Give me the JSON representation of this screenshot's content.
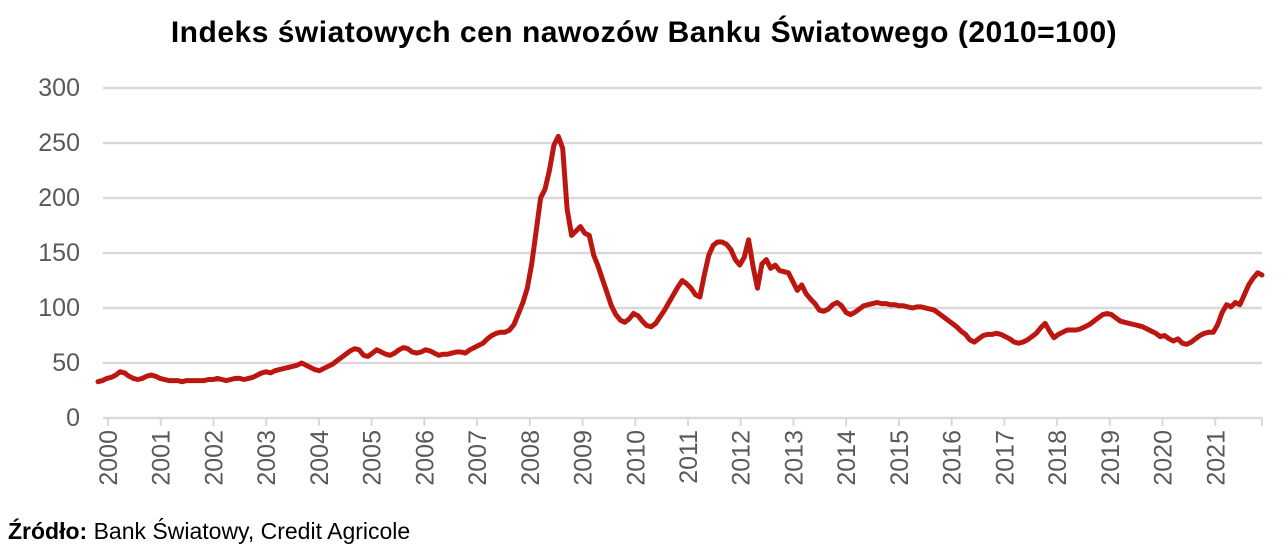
{
  "title": "Indeks światowych cen nawozów Banku Światowego (2010=100)",
  "source": {
    "label": "Źródło:",
    "text": " Bank Światowy, Credit Agricole"
  },
  "colors": {
    "line": "#BC1610",
    "grid": "#D9D9D9",
    "axis_text": "#595959",
    "title_text": "#000000"
  },
  "chart_data": {
    "type": "line",
    "title": "Indeks światowych cen nawozów Banku Światowego (2010=100)",
    "xlabel": "",
    "ylabel": "",
    "ylim": [
      0,
      300
    ],
    "y_ticks": [
      0,
      50,
      100,
      150,
      200,
      250,
      300
    ],
    "x_tick_labels": [
      "2000",
      "2001",
      "2002",
      "2003",
      "2004",
      "2005",
      "2006",
      "2007",
      "2008",
      "2009",
      "2010",
      "2011",
      "2012",
      "2013",
      "2014",
      "2015",
      "2016",
      "2017",
      "2018",
      "2019",
      "2020",
      "2021"
    ],
    "frequency": "monthly",
    "grid": "horizontal-only",
    "legend": "none",
    "series": [
      {
        "name": "Indeks cen nawozów Banku Światowego (2010=100)",
        "values_by_year": {
          "2000": [
            33,
            34,
            36,
            37,
            39,
            42,
            41,
            38,
            36,
            35,
            36,
            38
          ],
          "2001": [
            39,
            38,
            36,
            35,
            34,
            34,
            34,
            33,
            34,
            34,
            34,
            34
          ],
          "2002": [
            34,
            35,
            35,
            36,
            35,
            34,
            35,
            36,
            36,
            35,
            36,
            37
          ],
          "2003": [
            39,
            41,
            42,
            41,
            43,
            44,
            45,
            46,
            47,
            48,
            50,
            48
          ],
          "2004": [
            46,
            44,
            43,
            45,
            47,
            49,
            52,
            55,
            58,
            61,
            63,
            62
          ],
          "2005": [
            57,
            56,
            59,
            62,
            60,
            58,
            57,
            59,
            62,
            64,
            63,
            60
          ],
          "2006": [
            59,
            60,
            62,
            61,
            59,
            57,
            58,
            58,
            59,
            60,
            60,
            59
          ],
          "2007": [
            62,
            64,
            66,
            68,
            72,
            75,
            77,
            78,
            78,
            80,
            85,
            95
          ],
          "2008": [
            105,
            118,
            140,
            170,
            200,
            208,
            225,
            248,
            256,
            245,
            190,
            166
          ],
          "2009": [
            170,
            174,
            168,
            166,
            148,
            138,
            126,
            114,
            102,
            94,
            89,
            87
          ],
          "2010": [
            90,
            95,
            93,
            88,
            84,
            83,
            86,
            92,
            98,
            105,
            112,
            119
          ],
          "2011": [
            125,
            122,
            118,
            112,
            110,
            130,
            148,
            157,
            160,
            160,
            158,
            153
          ],
          "2012": [
            144,
            139,
            146,
            162,
            138,
            118,
            140,
            144,
            136,
            139,
            134,
            133
          ],
          "2013": [
            132,
            124,
            116,
            121,
            113,
            108,
            104,
            98,
            97,
            99,
            103,
            105
          ],
          "2014": [
            102,
            96,
            94,
            96,
            99,
            102,
            103,
            104,
            105,
            104,
            104,
            103
          ],
          "2015": [
            103,
            102,
            102,
            101,
            100,
            101,
            101,
            100,
            99,
            98,
            95,
            92
          ],
          "2016": [
            89,
            86,
            83,
            79,
            76,
            71,
            69,
            72,
            75,
            76,
            76,
            77
          ],
          "2017": [
            76,
            74,
            72,
            69,
            68,
            69,
            71,
            74,
            77,
            82,
            86,
            79
          ],
          "2018": [
            73,
            76,
            78,
            80,
            80,
            80,
            81,
            83,
            85,
            88,
            91,
            94
          ],
          "2019": [
            95,
            94,
            91,
            88,
            87,
            86,
            85,
            84,
            83,
            81,
            79,
            77
          ],
          "2020": [
            74,
            75,
            72,
            70,
            72,
            68,
            67,
            69,
            72,
            75,
            77,
            78
          ],
          "2021": [
            78,
            85,
            96,
            103,
            101,
            105,
            103,
            112,
            121,
            127,
            132,
            130
          ]
        }
      }
    ]
  }
}
